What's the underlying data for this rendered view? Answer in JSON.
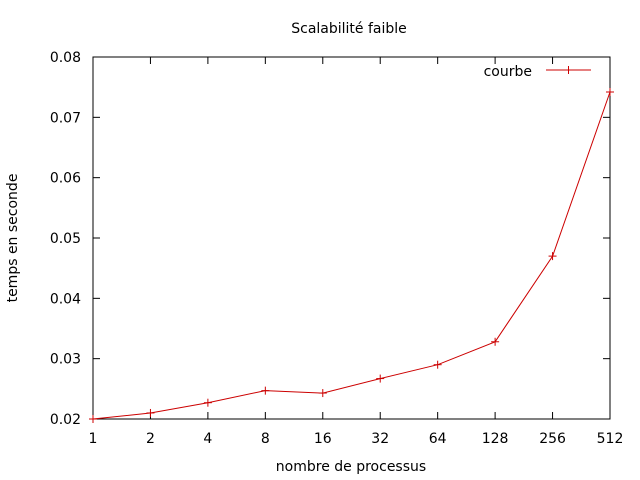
{
  "chart_data": {
    "type": "line",
    "title": "Scalabilité faible",
    "xlabel": "nombre de processus",
    "ylabel": "temps en seconde",
    "x_scale": "log2",
    "x": [
      1,
      2,
      4,
      8,
      16,
      32,
      64,
      128,
      256,
      512
    ],
    "x_tick_labels": [
      "1",
      "2",
      "4",
      "8",
      "16",
      "32",
      "64",
      "128",
      "256",
      "512"
    ],
    "ylim": [
      0.02,
      0.08
    ],
    "y_ticks": [
      0.02,
      0.03,
      0.04,
      0.05,
      0.06,
      0.07,
      0.08
    ],
    "y_tick_labels": [
      "0.02",
      "0.03",
      "0.04",
      "0.05",
      "0.06",
      "0.07",
      "0.08"
    ],
    "grid": false,
    "legend_position": "top-right",
    "series": [
      {
        "name": "courbe",
        "color": "#cc0000",
        "marker": "plus",
        "values": [
          0.02,
          0.021,
          0.0227,
          0.0247,
          0.0243,
          0.0267,
          0.029,
          0.0328,
          0.047,
          0.0742
        ]
      }
    ]
  }
}
